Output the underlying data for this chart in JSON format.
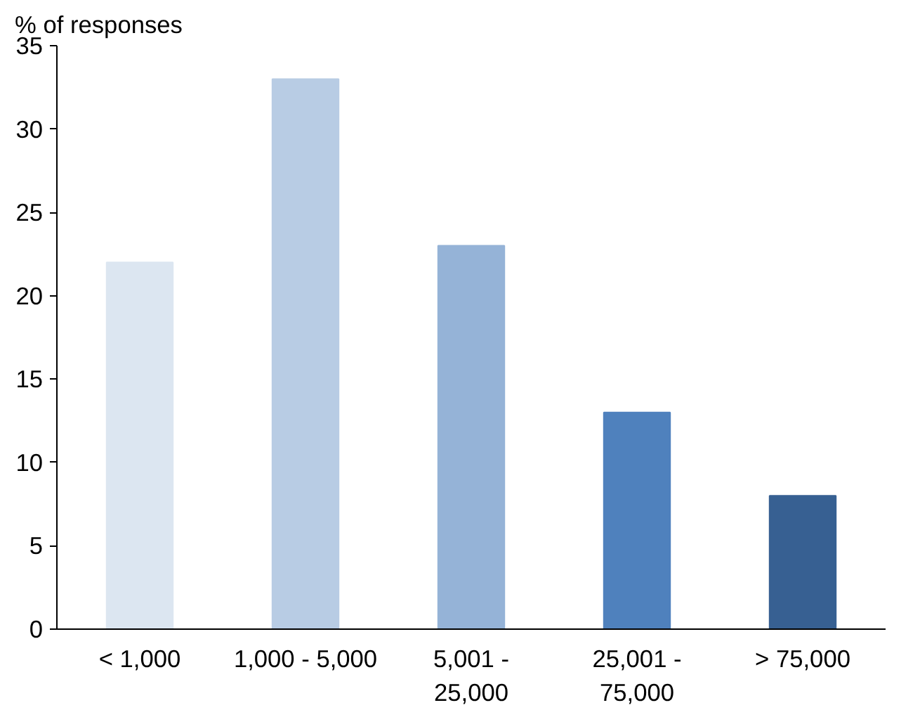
{
  "chart_data": {
    "type": "bar",
    "ylabel": "% of responses",
    "categories": [
      "< 1,000",
      "1,000 - 5,000",
      "5,001 -\n25,000",
      "25,001 -\n75,000",
      "> 75,000"
    ],
    "values": [
      22,
      33,
      23,
      13,
      8
    ],
    "colors": [
      "#dce6f1",
      "#b8cce4",
      "#95b3d7",
      "#4f81bd",
      "#376092"
    ],
    "ylim": [
      0,
      35
    ],
    "yticks": [
      0,
      5,
      10,
      15,
      20,
      25,
      30,
      35
    ],
    "grid": false
  }
}
